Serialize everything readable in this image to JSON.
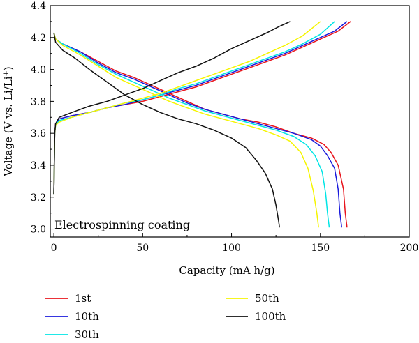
{
  "chart_data": {
    "type": "line",
    "title": "",
    "xlabel": "Capacity (mA h/g)",
    "ylabel": "Voltage (V vs. Li/Li",
    "ylabel_sup": "+",
    "ylabel_tail": ")",
    "annotation": "Electrospinning coating",
    "xlim": [
      -2,
      200
    ],
    "ylim": [
      2.95,
      4.4
    ],
    "xticks": [
      0,
      50,
      100,
      150,
      200
    ],
    "xtick_labels": [
      "0",
      "50",
      "100",
      "150",
      "200"
    ],
    "yticks": [
      3.0,
      3.2,
      3.4,
      3.6,
      3.8,
      4.0,
      4.2,
      4.4
    ],
    "ytick_labels": [
      "3.0",
      "3.2",
      "3.4",
      "3.6",
      "3.8",
      "4.0",
      "4.2",
      "4.4"
    ],
    "grid": false,
    "legend_position": "bottom",
    "series": [
      {
        "name": "1st",
        "color": "#e8141c",
        "charge": [
          [
            0,
            3.22
          ],
          [
            0.5,
            3.6
          ],
          [
            1,
            3.66
          ],
          [
            3,
            3.69
          ],
          [
            10,
            3.71
          ],
          [
            20,
            3.73
          ],
          [
            30,
            3.76
          ],
          [
            40,
            3.78
          ],
          [
            50,
            3.8
          ],
          [
            60,
            3.83
          ],
          [
            70,
            3.86
          ],
          [
            80,
            3.89
          ],
          [
            90,
            3.93
          ],
          [
            100,
            3.97
          ],
          [
            110,
            4.01
          ],
          [
            120,
            4.05
          ],
          [
            130,
            4.09
          ],
          [
            140,
            4.14
          ],
          [
            150,
            4.19
          ],
          [
            160,
            4.24
          ],
          [
            167,
            4.3
          ]
        ],
        "discharge": [
          [
            0,
            4.23
          ],
          [
            1,
            4.19
          ],
          [
            5,
            4.16
          ],
          [
            15,
            4.11
          ],
          [
            25,
            4.05
          ],
          [
            35,
            3.99
          ],
          [
            45,
            3.95
          ],
          [
            55,
            3.9
          ],
          [
            65,
            3.85
          ],
          [
            75,
            3.8
          ],
          [
            85,
            3.75
          ],
          [
            95,
            3.72
          ],
          [
            105,
            3.69
          ],
          [
            115,
            3.67
          ],
          [
            125,
            3.64
          ],
          [
            135,
            3.6
          ],
          [
            145,
            3.57
          ],
          [
            152,
            3.53
          ],
          [
            156,
            3.48
          ],
          [
            160,
            3.4
          ],
          [
            163,
            3.25
          ],
          [
            164,
            3.1
          ],
          [
            165,
            3.01
          ]
        ]
      },
      {
        "name": "10th",
        "color": "#1a1adc",
        "charge": [
          [
            0,
            3.22
          ],
          [
            0.5,
            3.6
          ],
          [
            1,
            3.66
          ],
          [
            3,
            3.69
          ],
          [
            10,
            3.71
          ],
          [
            20,
            3.73
          ],
          [
            30,
            3.76
          ],
          [
            40,
            3.78
          ],
          [
            50,
            3.81
          ],
          [
            60,
            3.84
          ],
          [
            70,
            3.87
          ],
          [
            80,
            3.9
          ],
          [
            90,
            3.94
          ],
          [
            100,
            3.98
          ],
          [
            110,
            4.02
          ],
          [
            120,
            4.06
          ],
          [
            130,
            4.1
          ],
          [
            140,
            4.15
          ],
          [
            150,
            4.2
          ],
          [
            158,
            4.24
          ],
          [
            165,
            4.3
          ]
        ],
        "discharge": [
          [
            0,
            4.23
          ],
          [
            1,
            4.19
          ],
          [
            5,
            4.16
          ],
          [
            15,
            4.11
          ],
          [
            25,
            4.04
          ],
          [
            35,
            3.98
          ],
          [
            45,
            3.94
          ],
          [
            55,
            3.89
          ],
          [
            65,
            3.84
          ],
          [
            75,
            3.79
          ],
          [
            85,
            3.75
          ],
          [
            95,
            3.72
          ],
          [
            105,
            3.69
          ],
          [
            115,
            3.66
          ],
          [
            125,
            3.63
          ],
          [
            135,
            3.6
          ],
          [
            145,
            3.56
          ],
          [
            150,
            3.52
          ],
          [
            154,
            3.46
          ],
          [
            158,
            3.38
          ],
          [
            160,
            3.25
          ],
          [
            161,
            3.1
          ],
          [
            162,
            3.01
          ]
        ]
      },
      {
        "name": "30th",
        "color": "#00e5e5",
        "charge": [
          [
            0,
            3.22
          ],
          [
            0.5,
            3.6
          ],
          [
            1,
            3.65
          ],
          [
            3,
            3.68
          ],
          [
            10,
            3.7
          ],
          [
            20,
            3.73
          ],
          [
            30,
            3.76
          ],
          [
            40,
            3.79
          ],
          [
            50,
            3.81
          ],
          [
            60,
            3.84
          ],
          [
            70,
            3.88
          ],
          [
            80,
            3.91
          ],
          [
            90,
            3.95
          ],
          [
            100,
            3.99
          ],
          [
            110,
            4.03
          ],
          [
            120,
            4.07
          ],
          [
            130,
            4.11
          ],
          [
            140,
            4.16
          ],
          [
            150,
            4.22
          ],
          [
            158,
            4.3
          ]
        ],
        "discharge": [
          [
            0,
            4.23
          ],
          [
            1,
            4.19
          ],
          [
            5,
            4.16
          ],
          [
            15,
            4.1
          ],
          [
            25,
            4.03
          ],
          [
            35,
            3.97
          ],
          [
            45,
            3.92
          ],
          [
            55,
            3.87
          ],
          [
            65,
            3.82
          ],
          [
            75,
            3.78
          ],
          [
            85,
            3.74
          ],
          [
            95,
            3.71
          ],
          [
            105,
            3.68
          ],
          [
            115,
            3.65
          ],
          [
            125,
            3.62
          ],
          [
            135,
            3.58
          ],
          [
            142,
            3.53
          ],
          [
            147,
            3.46
          ],
          [
            151,
            3.36
          ],
          [
            153,
            3.22
          ],
          [
            154,
            3.1
          ],
          [
            155,
            3.01
          ]
        ]
      },
      {
        "name": "50th",
        "color": "#f5f500",
        "charge": [
          [
            0,
            3.22
          ],
          [
            0.5,
            3.6
          ],
          [
            1,
            3.65
          ],
          [
            3,
            3.67
          ],
          [
            10,
            3.7
          ],
          [
            20,
            3.73
          ],
          [
            30,
            3.76
          ],
          [
            40,
            3.79
          ],
          [
            50,
            3.82
          ],
          [
            60,
            3.85
          ],
          [
            70,
            3.89
          ],
          [
            80,
            3.93
          ],
          [
            90,
            3.97
          ],
          [
            100,
            4.01
          ],
          [
            110,
            4.05
          ],
          [
            120,
            4.1
          ],
          [
            130,
            4.15
          ],
          [
            140,
            4.21
          ],
          [
            150,
            4.3
          ]
        ],
        "discharge": [
          [
            0,
            4.23
          ],
          [
            1,
            4.19
          ],
          [
            5,
            4.15
          ],
          [
            15,
            4.09
          ],
          [
            25,
            4.02
          ],
          [
            35,
            3.95
          ],
          [
            45,
            3.9
          ],
          [
            55,
            3.85
          ],
          [
            65,
            3.8
          ],
          [
            75,
            3.76
          ],
          [
            85,
            3.72
          ],
          [
            95,
            3.69
          ],
          [
            105,
            3.66
          ],
          [
            115,
            3.63
          ],
          [
            125,
            3.59
          ],
          [
            133,
            3.55
          ],
          [
            139,
            3.48
          ],
          [
            143,
            3.38
          ],
          [
            146,
            3.24
          ],
          [
            148,
            3.1
          ],
          [
            149,
            3.01
          ]
        ]
      },
      {
        "name": "100th",
        "color": "#111111",
        "charge": [
          [
            0,
            3.22
          ],
          [
            0.5,
            3.6
          ],
          [
            1,
            3.66
          ],
          [
            3,
            3.7
          ],
          [
            10,
            3.73
          ],
          [
            20,
            3.77
          ],
          [
            30,
            3.8
          ],
          [
            40,
            3.84
          ],
          [
            50,
            3.88
          ],
          [
            60,
            3.93
          ],
          [
            70,
            3.98
          ],
          [
            80,
            4.02
          ],
          [
            90,
            4.07
          ],
          [
            100,
            4.13
          ],
          [
            110,
            4.18
          ],
          [
            120,
            4.23
          ],
          [
            127,
            4.27
          ],
          [
            133,
            4.3
          ]
        ],
        "discharge": [
          [
            0,
            4.23
          ],
          [
            1,
            4.17
          ],
          [
            5,
            4.12
          ],
          [
            12,
            4.07
          ],
          [
            20,
            4.0
          ],
          [
            30,
            3.92
          ],
          [
            40,
            3.84
          ],
          [
            50,
            3.78
          ],
          [
            60,
            3.73
          ],
          [
            70,
            3.69
          ],
          [
            80,
            3.66
          ],
          [
            90,
            3.62
          ],
          [
            100,
            3.57
          ],
          [
            108,
            3.51
          ],
          [
            114,
            3.43
          ],
          [
            119,
            3.35
          ],
          [
            123,
            3.25
          ],
          [
            125,
            3.15
          ],
          [
            126.5,
            3.05
          ],
          [
            127,
            3.01
          ]
        ]
      }
    ]
  }
}
